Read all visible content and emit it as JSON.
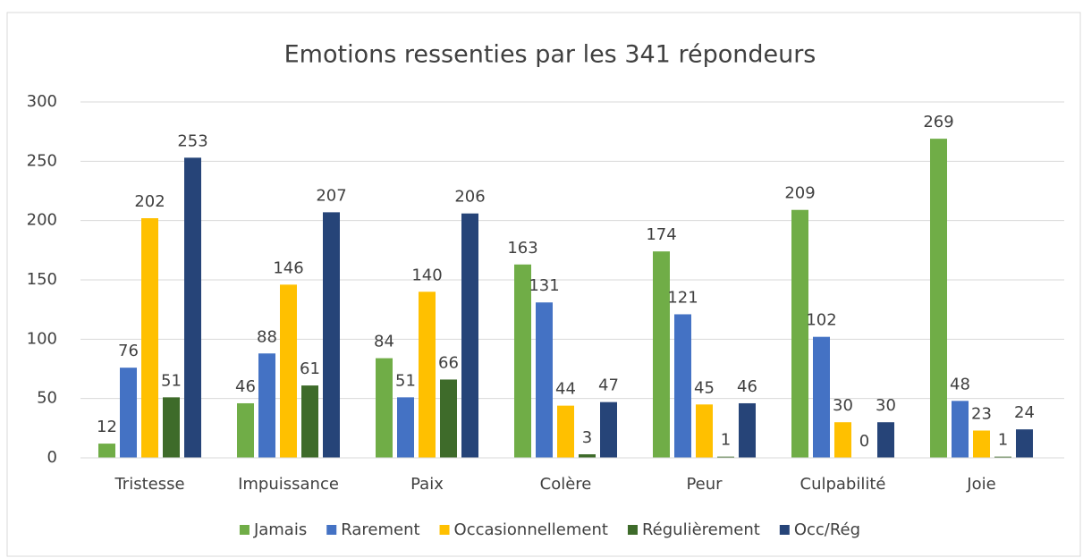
{
  "chart_data": {
    "type": "bar",
    "title": "Emotions ressenties par les 341 répondeurs",
    "categories": [
      "Tristesse",
      "Impuissance",
      "Paix",
      "Colère",
      "Peur",
      "Culpabilité",
      "Joie"
    ],
    "series": [
      {
        "name": "Jamais",
        "color": "#70ad47",
        "values": [
          12,
          46,
          84,
          163,
          174,
          209,
          269
        ]
      },
      {
        "name": "Rarement",
        "color": "#4472c4",
        "values": [
          76,
          88,
          51,
          131,
          121,
          102,
          48
        ]
      },
      {
        "name": "Occasionnellement",
        "color": "#ffc000",
        "values": [
          202,
          146,
          140,
          44,
          45,
          30,
          23
        ]
      },
      {
        "name": "Régulièrement",
        "color": "#3e6b2a",
        "values": [
          51,
          61,
          66,
          3,
          1,
          0,
          1
        ]
      },
      {
        "name": "Occ/Rég",
        "color": "#264478",
        "values": [
          253,
          207,
          206,
          47,
          46,
          30,
          24
        ]
      }
    ],
    "ylim": [
      0,
      300
    ],
    "yticks": [
      0,
      50,
      100,
      150,
      200,
      250,
      300
    ],
    "grid": true,
    "legend": "bottom"
  }
}
